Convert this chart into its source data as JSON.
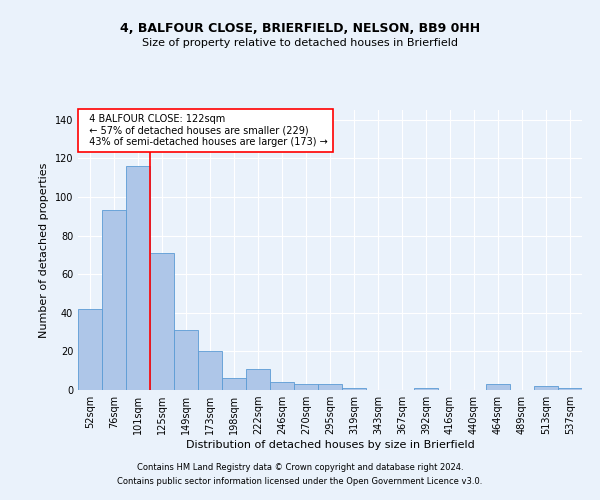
{
  "title1": "4, BALFOUR CLOSE, BRIERFIELD, NELSON, BB9 0HH",
  "title2": "Size of property relative to detached houses in Brierfield",
  "xlabel": "Distribution of detached houses by size in Brierfield",
  "ylabel": "Number of detached properties",
  "categories": [
    "52sqm",
    "76sqm",
    "101sqm",
    "125sqm",
    "149sqm",
    "173sqm",
    "198sqm",
    "222sqm",
    "246sqm",
    "270sqm",
    "295sqm",
    "319sqm",
    "343sqm",
    "367sqm",
    "392sqm",
    "416sqm",
    "440sqm",
    "464sqm",
    "489sqm",
    "513sqm",
    "537sqm"
  ],
  "values": [
    42,
    93,
    116,
    71,
    31,
    20,
    6,
    11,
    4,
    3,
    3,
    1,
    0,
    0,
    1,
    0,
    0,
    3,
    0,
    2,
    1
  ],
  "bar_color": "#aec6e8",
  "bar_edge_color": "#5b9bd5",
  "property_line_x": 2.5,
  "annotation_text": "  4 BALFOUR CLOSE: 122sqm\n  ← 57% of detached houses are smaller (229)\n  43% of semi-detached houses are larger (173) →",
  "annotation_box_color": "white",
  "annotation_box_edge_color": "red",
  "property_line_color": "red",
  "ylim": [
    0,
    145
  ],
  "yticks": [
    0,
    20,
    40,
    60,
    80,
    100,
    120,
    140
  ],
  "background_color": "#eaf2fb",
  "plot_background": "#eaf2fb",
  "grid_color": "white",
  "footer1": "Contains HM Land Registry data © Crown copyright and database right 2024.",
  "footer2": "Contains public sector information licensed under the Open Government Licence v3.0.",
  "title1_fontsize": 9,
  "title2_fontsize": 8,
  "xlabel_fontsize": 8,
  "ylabel_fontsize": 8,
  "tick_fontsize": 7,
  "annotation_fontsize": 7,
  "footer_fontsize": 6
}
